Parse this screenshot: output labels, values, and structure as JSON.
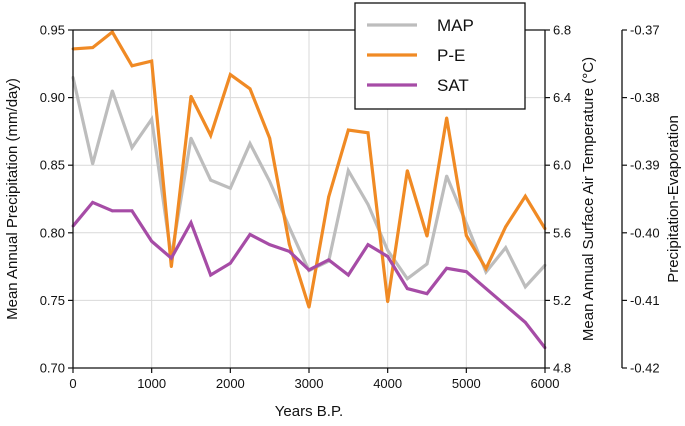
{
  "chart_data": {
    "type": "line",
    "xlabel": "Years B.P.",
    "x_ticks": [
      "0",
      "1000",
      "2000",
      "3000",
      "4000",
      "5000",
      "6000"
    ],
    "xlim": [
      0,
      6000
    ],
    "grid": true,
    "legend_position": "top-right",
    "axes": [
      {
        "id": "left",
        "label": "Mean Annual Precipitation (mm/day)",
        "ylim": [
          0.7,
          0.95
        ],
        "ticks": [
          "0.70",
          "0.75",
          "0.80",
          "0.85",
          "0.90",
          "0.95"
        ]
      },
      {
        "id": "right1",
        "label": "Mean Annual Surface Air Temperature (°C)",
        "ylim": [
          4.8,
          6.8
        ],
        "ticks": [
          "4.8",
          "5.2",
          "5.6",
          "6.0",
          "6.4",
          "6.8"
        ]
      },
      {
        "id": "right2",
        "label": "Precipitation-Evaporation",
        "ylim": [
          -0.42,
          -0.37
        ],
        "ticks": [
          "-0.42",
          "-0.41",
          "-0.40",
          "-0.39",
          "-0.38",
          "-0.37"
        ]
      }
    ],
    "x": [
      0,
      250,
      500,
      750,
      1000,
      1250,
      1500,
      1750,
      2000,
      2250,
      2500,
      2750,
      3000,
      3250,
      3500,
      3750,
      4000,
      4250,
      4500,
      4750,
      5000,
      5250,
      5500,
      5750,
      6000
    ],
    "series": [
      {
        "name": "MAP",
        "axis": "left",
        "color": "#bdbdbd",
        "values": [
          0.915,
          0.851,
          0.905,
          0.863,
          0.884,
          0.782,
          0.87,
          0.839,
          0.833,
          0.866,
          0.838,
          0.804,
          0.772,
          0.779,
          0.846,
          0.821,
          0.787,
          0.766,
          0.777,
          0.842,
          0.807,
          0.771,
          0.789,
          0.76,
          0.776
        ]
      },
      {
        "name": "P-E",
        "axis": "right2",
        "color": "#f08a24",
        "values": [
          -0.3728,
          -0.3726,
          -0.3703,
          -0.3753,
          -0.3746,
          -0.405,
          -0.3798,
          -0.3856,
          -0.3766,
          -0.3787,
          -0.386,
          -0.4017,
          -0.411,
          -0.3947,
          -0.3848,
          -0.3852,
          -0.4102,
          -0.3908,
          -0.4005,
          -0.383,
          -0.4004,
          -0.4053,
          -0.3991,
          -0.3946,
          -0.3994
        ]
      },
      {
        "name": "SAT",
        "axis": "right1",
        "color": "#a64ca6",
        "values": [
          5.64,
          5.78,
          5.73,
          5.73,
          5.55,
          5.45,
          5.66,
          5.35,
          5.42,
          5.59,
          5.53,
          5.49,
          5.38,
          5.44,
          5.35,
          5.53,
          5.46,
          5.27,
          5.24,
          5.39,
          5.37,
          5.27,
          5.17,
          5.07,
          4.92
        ]
      }
    ]
  }
}
